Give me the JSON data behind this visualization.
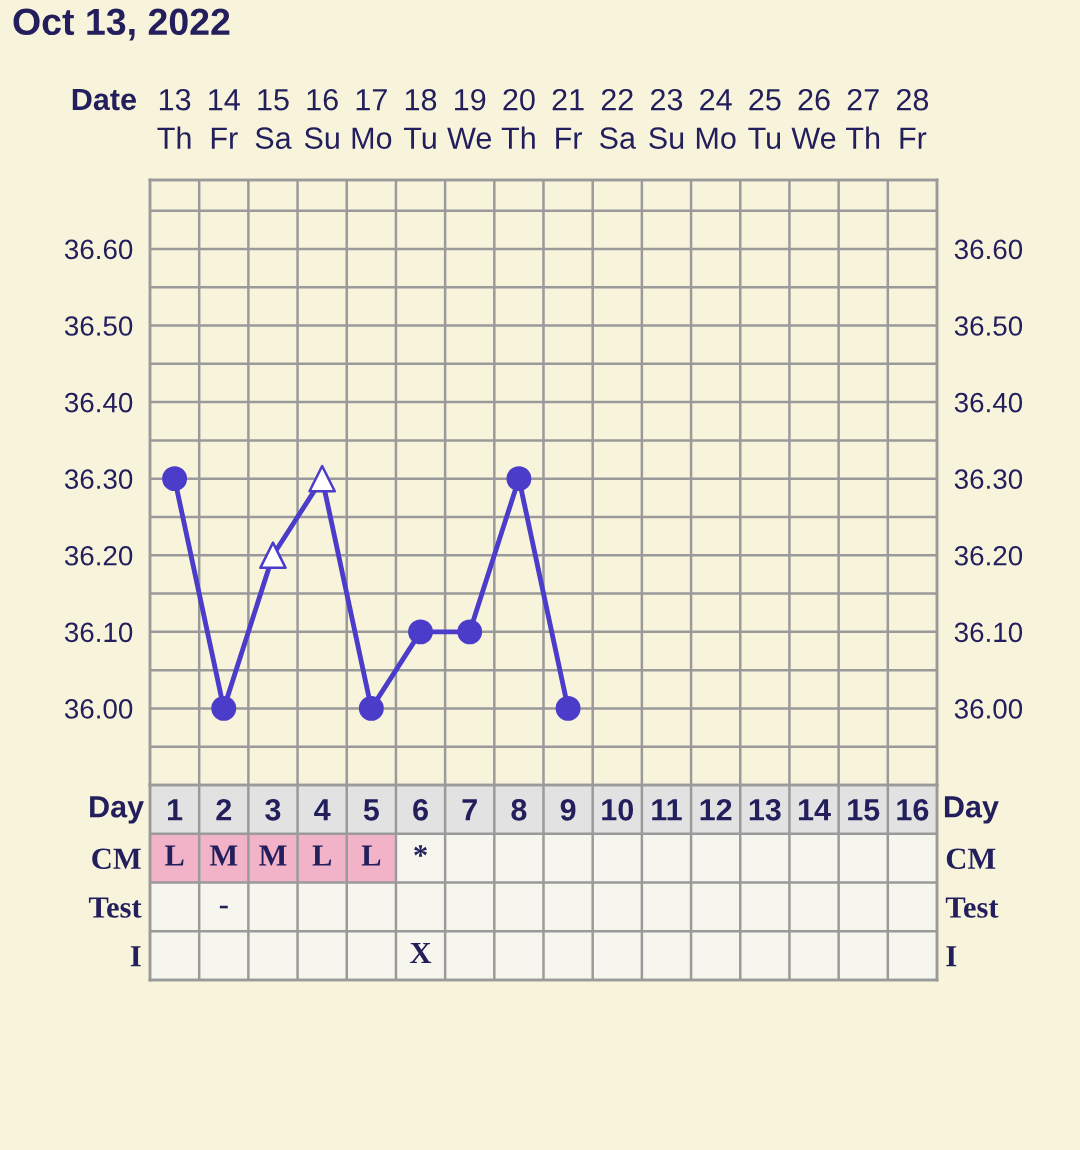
{
  "chart_data": [
    {
      "type": "line",
      "title": "Oct 13, 2022",
      "xlabel": "Date",
      "categories": [
        "13\nTh",
        "14\nFr",
        "15\nSa",
        "16\nSu",
        "17\nMo",
        "18\nTu",
        "19\nWe",
        "20\nTh",
        "21\nFr",
        "22\nSa",
        "23\nSu",
        "24\nMo",
        "25\nTu",
        "26\nWe",
        "27\nTh",
        "28\nFr"
      ],
      "series": [
        {
          "type": "line",
          "color": "#4b3cc9",
          "marker": "none",
          "values": [
            36.3,
            36.0,
            36.2,
            36.3,
            36.0,
            36.1,
            36.1,
            36.3,
            36.0,
            null,
            null,
            null,
            null,
            null,
            null,
            null
          ]
        },
        {
          "type": "scatter",
          "color": "#4b3cc9",
          "marker": "circle",
          "values": [
            36.3,
            36.0,
            null,
            null,
            36.0,
            36.1,
            36.1,
            36.3,
            36.0,
            null,
            null,
            null,
            null,
            null,
            null,
            null
          ]
        },
        {
          "type": "scatter",
          "color": "#4b3cc9",
          "marker": "triangle",
          "values": [
            null,
            null,
            36.2,
            36.3,
            null,
            null,
            null,
            null,
            null,
            null,
            null,
            null,
            null,
            null,
            null,
            null
          ]
        }
      ],
      "ylim": [
        35.9,
        36.69
      ],
      "yticks": [
        {
          "value": 35.95,
          "label": null
        },
        {
          "value": 36.0,
          "label": "36.00"
        },
        {
          "value": 36.05,
          "label": null
        },
        {
          "value": 36.1,
          "label": "36.10"
        },
        {
          "value": 36.15,
          "label": null
        },
        {
          "value": 36.2,
          "label": "36.20"
        },
        {
          "value": 36.25,
          "label": null
        },
        {
          "value": 36.3,
          "label": "36.30"
        },
        {
          "value": 36.35,
          "label": null
        },
        {
          "value": 36.4,
          "label": "36.40"
        },
        {
          "value": 36.45,
          "label": null
        },
        {
          "value": 36.5,
          "label": "36.50"
        },
        {
          "value": 36.55,
          "label": null
        },
        {
          "value": 36.6,
          "label": "36.60"
        },
        {
          "value": 36.65,
          "label": null
        }
      ],
      "y2lim": [
        35.9,
        36.69
      ],
      "y2ticks": [
        {
          "value": 36.0,
          "label": "36.00"
        },
        {
          "value": 36.1,
          "label": "36.10"
        },
        {
          "value": 36.2,
          "label": "36.20"
        },
        {
          "value": 36.3,
          "label": "36.30"
        },
        {
          "value": 36.4,
          "label": "36.40"
        },
        {
          "value": 36.5,
          "label": "36.50"
        },
        {
          "value": 36.6,
          "label": "36.60"
        }
      ],
      "grid": true,
      "legend": false
    },
    {
      "type": "heatmap",
      "xlabel": "Day",
      "categories": [
        "1",
        "2",
        "3",
        "4",
        "5",
        "6",
        "7",
        "8",
        "9",
        "10",
        "11",
        "12",
        "13",
        "14",
        "15",
        "16"
      ],
      "y_categories": [
        "CM",
        "Test",
        "I"
      ],
      "y2_categories": [
        "CM",
        "Test",
        "I"
      ],
      "cells": [
        [
          null,
          null,
          null,
          null,
          null,
          null,
          null,
          null,
          null,
          null,
          null,
          null,
          null,
          null,
          null,
          null
        ],
        [
          null,
          null,
          null,
          null,
          null,
          null,
          null,
          null,
          null,
          null,
          null,
          null,
          null,
          null,
          null,
          null
        ],
        [
          null,
          null,
          null,
          null,
          null,
          null,
          null,
          null,
          null,
          null,
          null,
          null,
          null,
          null,
          null,
          null
        ]
      ],
      "cell_labels": [
        [
          "L",
          "M",
          "M",
          "L",
          "L",
          "*",
          null,
          null,
          null,
          null,
          null,
          null,
          null,
          null,
          null,
          null
        ],
        [
          null,
          "-",
          null,
          null,
          null,
          null,
          null,
          null,
          null,
          null,
          null,
          null,
          null,
          null,
          null,
          null
        ],
        [
          null,
          null,
          null,
          null,
          null,
          "X",
          null,
          null,
          null,
          null,
          null,
          null,
          null,
          null,
          null,
          null
        ]
      ],
      "colors": [
        [
          "#f2b3c8",
          "#f2b3c8",
          "#f2b3c8",
          "#f2b3c8",
          "#f2b3c8",
          null,
          null,
          null,
          null,
          null,
          null,
          null,
          null,
          null,
          null,
          null
        ],
        [
          null,
          null,
          null,
          null,
          null,
          null,
          null,
          null,
          null,
          null,
          null,
          null,
          null,
          null,
          null,
          null
        ],
        [
          null,
          null,
          null,
          null,
          null,
          null,
          null,
          null,
          null,
          null,
          null,
          null,
          null,
          null,
          null,
          null
        ]
      ]
    }
  ]
}
